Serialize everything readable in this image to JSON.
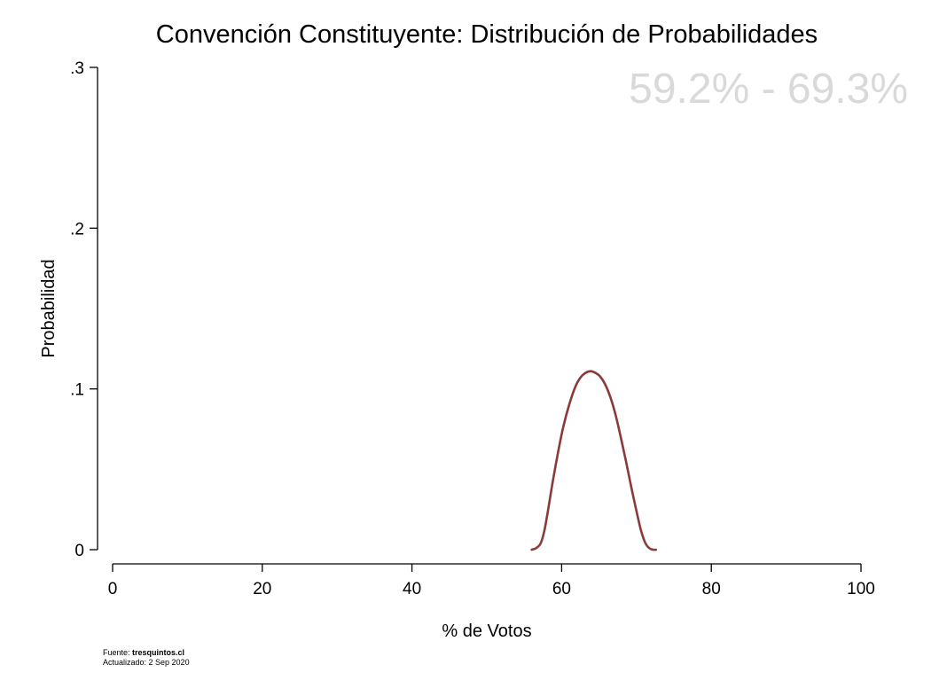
{
  "chart_data": {
    "type": "line",
    "title": "Convención Constituyente: Distribución de Probabilidades",
    "annotation": "59.2% - 69.3%",
    "xlabel": "% de Votos",
    "ylabel": "Probabilidad",
    "xlim": [
      0,
      100
    ],
    "ylim": [
      0,
      0.3
    ],
    "x_ticks": [
      {
        "value": 0,
        "label": "0"
      },
      {
        "value": 20,
        "label": "20"
      },
      {
        "value": 40,
        "label": "40"
      },
      {
        "value": 60,
        "label": "60"
      },
      {
        "value": 80,
        "label": "80"
      },
      {
        "value": 100,
        "label": "100"
      }
    ],
    "y_ticks": [
      {
        "value": 0,
        "label": "0"
      },
      {
        "value": 0.1,
        "label": ".1"
      },
      {
        "value": 0.2,
        "label": ".2"
      },
      {
        "value": 0.3,
        "label": ".3"
      }
    ],
    "grid": false,
    "series": [
      {
        "color": "#8b3a3a",
        "x": [
          56.0,
          56.6,
          57.2,
          57.7,
          58.2,
          58.8,
          59.5,
          60.2,
          61.0,
          61.8,
          62.5,
          63.2,
          63.9,
          64.5,
          65.1,
          65.8,
          66.5,
          67.2,
          67.9,
          68.6,
          69.3,
          70.0,
          70.6,
          71.2,
          71.7,
          72.2,
          72.6
        ],
        "values": [
          0.0,
          0.001,
          0.004,
          0.012,
          0.025,
          0.042,
          0.06,
          0.076,
          0.09,
          0.101,
          0.107,
          0.11,
          0.111,
          0.11,
          0.108,
          0.103,
          0.095,
          0.084,
          0.07,
          0.055,
          0.039,
          0.024,
          0.012,
          0.004,
          0.001,
          0.0,
          0.0
        ]
      }
    ]
  },
  "footer": {
    "source_label": "Fuente: ",
    "source_value": "tresquintos.cl",
    "updated": "Actualizado: 2 Sep 2020"
  }
}
